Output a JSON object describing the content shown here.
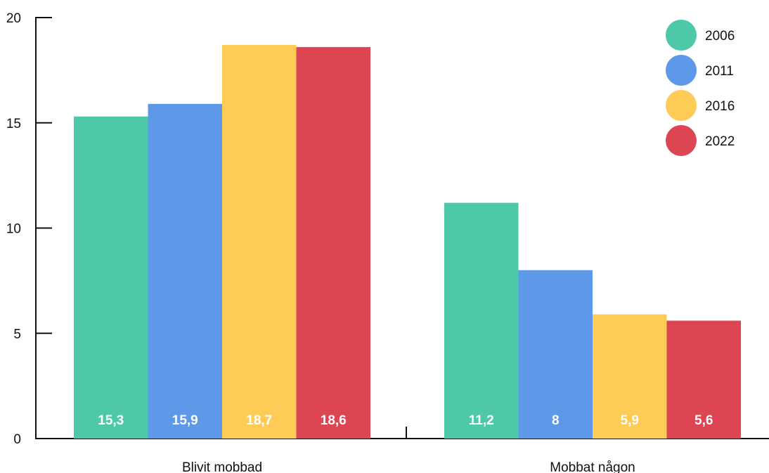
{
  "chart_data": {
    "type": "bar",
    "categories": [
      "Blivit mobbad",
      "Mobbat någon"
    ],
    "series": [
      {
        "name": "2006",
        "values": [
          15.3,
          11.2
        ],
        "labels": [
          "15,3",
          "11,2"
        ],
        "color": "#4DC9A9"
      },
      {
        "name": "2011",
        "values": [
          15.9,
          8
        ],
        "labels": [
          "15,9",
          "8"
        ],
        "color": "#5D99E8"
      },
      {
        "name": "2016",
        "values": [
          18.7,
          5.9
        ],
        "labels": [
          "18,7",
          "5,9"
        ],
        "color": "#FFCB57"
      },
      {
        "name": "2022",
        "values": [
          18.6,
          5.6
        ],
        "labels": [
          "18,6",
          "5,6"
        ],
        "color": "#DE4553"
      }
    ],
    "title": "",
    "xlabel": "",
    "ylabel": "",
    "ylim": [
      0,
      20
    ],
    "yticks": [
      "0",
      "5",
      "10",
      "15",
      "20"
    ],
    "grid": false,
    "legend_position": "top-right"
  }
}
